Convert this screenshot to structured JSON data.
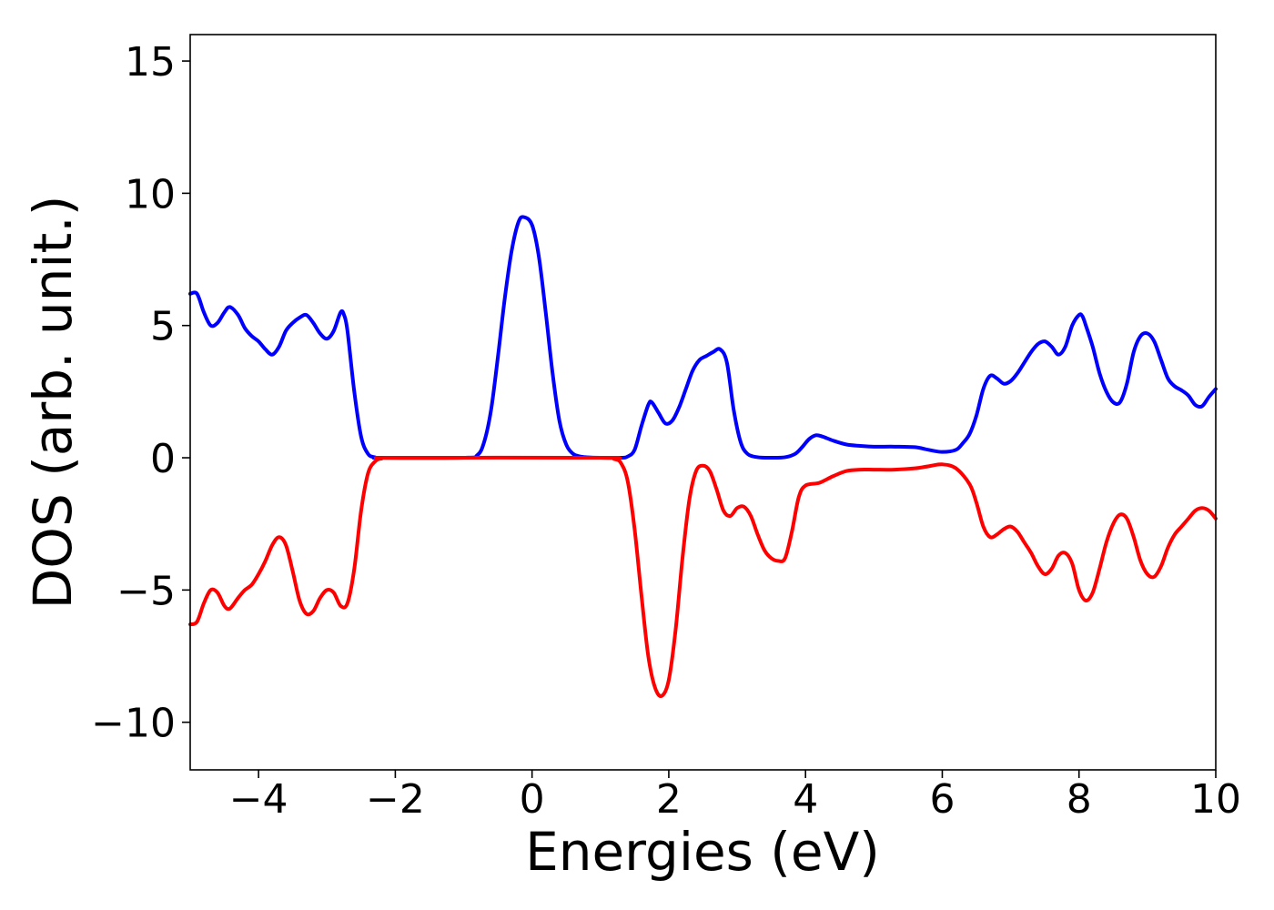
{
  "chart_data": {
    "type": "line",
    "title": "",
    "xlabel": "Energies (eV)",
    "ylabel": "DOS (arb. unit.)",
    "xlim": [
      -5,
      10
    ],
    "ylim": [
      -11.8,
      16
    ],
    "xticks": [
      {
        "value": -4,
        "label": "−4"
      },
      {
        "value": -2,
        "label": "−2"
      },
      {
        "value": 0,
        "label": "0"
      },
      {
        "value": 2,
        "label": "2"
      },
      {
        "value": 4,
        "label": "4"
      },
      {
        "value": 6,
        "label": "6"
      },
      {
        "value": 8,
        "label": "8"
      },
      {
        "value": 10,
        "label": "10"
      }
    ],
    "yticks": [
      {
        "value": -10,
        "label": "−10"
      },
      {
        "value": -5,
        "label": "−5"
      },
      {
        "value": 0,
        "label": "0"
      },
      {
        "value": 5,
        "label": "5"
      },
      {
        "value": 10,
        "label": "10"
      },
      {
        "value": 15,
        "label": "15"
      }
    ],
    "grid": false,
    "legend": "none",
    "series": [
      {
        "color": "#0000ff",
        "points": [
          [
            -5.0,
            6.2
          ],
          [
            -4.9,
            6.2
          ],
          [
            -4.8,
            5.5
          ],
          [
            -4.7,
            5.0
          ],
          [
            -4.6,
            5.1
          ],
          [
            -4.5,
            5.5
          ],
          [
            -4.42,
            5.7
          ],
          [
            -4.3,
            5.4
          ],
          [
            -4.2,
            4.9
          ],
          [
            -4.1,
            4.6
          ],
          [
            -4.0,
            4.4
          ],
          [
            -3.9,
            4.1
          ],
          [
            -3.8,
            3.9
          ],
          [
            -3.7,
            4.2
          ],
          [
            -3.6,
            4.8
          ],
          [
            -3.5,
            5.1
          ],
          [
            -3.4,
            5.3
          ],
          [
            -3.3,
            5.4
          ],
          [
            -3.2,
            5.1
          ],
          [
            -3.1,
            4.7
          ],
          [
            -3.0,
            4.5
          ],
          [
            -2.9,
            4.8
          ],
          [
            -2.8,
            5.5
          ],
          [
            -2.75,
            5.4
          ],
          [
            -2.7,
            4.8
          ],
          [
            -2.6,
            2.5
          ],
          [
            -2.5,
            0.8
          ],
          [
            -2.4,
            0.15
          ],
          [
            -2.3,
            0.02
          ],
          [
            -2.2,
            0.0
          ],
          [
            -1.0,
            0.0
          ],
          [
            -0.8,
            0.1
          ],
          [
            -0.7,
            0.6
          ],
          [
            -0.6,
            1.8
          ],
          [
            -0.5,
            3.8
          ],
          [
            -0.4,
            6.0
          ],
          [
            -0.3,
            7.8
          ],
          [
            -0.2,
            8.9
          ],
          [
            -0.12,
            9.1
          ],
          [
            0.0,
            8.8
          ],
          [
            0.1,
            7.6
          ],
          [
            0.2,
            5.5
          ],
          [
            0.3,
            3.2
          ],
          [
            0.4,
            1.4
          ],
          [
            0.5,
            0.5
          ],
          [
            0.6,
            0.15
          ],
          [
            0.7,
            0.05
          ],
          [
            0.8,
            0.02
          ],
          [
            1.0,
            0.0
          ],
          [
            1.3,
            0.0
          ],
          [
            1.4,
            0.05
          ],
          [
            1.5,
            0.3
          ],
          [
            1.6,
            1.2
          ],
          [
            1.7,
            2.0
          ],
          [
            1.75,
            2.1
          ],
          [
            1.85,
            1.7
          ],
          [
            1.95,
            1.3
          ],
          [
            2.05,
            1.4
          ],
          [
            2.15,
            1.9
          ],
          [
            2.25,
            2.6
          ],
          [
            2.35,
            3.3
          ],
          [
            2.45,
            3.7
          ],
          [
            2.55,
            3.85
          ],
          [
            2.65,
            4.0
          ],
          [
            2.75,
            4.1
          ],
          [
            2.85,
            3.6
          ],
          [
            2.95,
            1.8
          ],
          [
            3.05,
            0.6
          ],
          [
            3.15,
            0.15
          ],
          [
            3.3,
            0.02
          ],
          [
            3.5,
            0.0
          ],
          [
            3.7,
            0.02
          ],
          [
            3.85,
            0.15
          ],
          [
            3.95,
            0.4
          ],
          [
            4.05,
            0.7
          ],
          [
            4.15,
            0.85
          ],
          [
            4.25,
            0.8
          ],
          [
            4.4,
            0.65
          ],
          [
            4.6,
            0.5
          ],
          [
            4.8,
            0.45
          ],
          [
            5.0,
            0.42
          ],
          [
            5.3,
            0.42
          ],
          [
            5.6,
            0.4
          ],
          [
            5.8,
            0.3
          ],
          [
            6.0,
            0.22
          ],
          [
            6.2,
            0.3
          ],
          [
            6.3,
            0.55
          ],
          [
            6.4,
            0.9
          ],
          [
            6.5,
            1.6
          ],
          [
            6.6,
            2.6
          ],
          [
            6.7,
            3.1
          ],
          [
            6.8,
            3.0
          ],
          [
            6.9,
            2.8
          ],
          [
            7.0,
            2.9
          ],
          [
            7.1,
            3.2
          ],
          [
            7.2,
            3.6
          ],
          [
            7.3,
            4.0
          ],
          [
            7.4,
            4.3
          ],
          [
            7.5,
            4.4
          ],
          [
            7.6,
            4.2
          ],
          [
            7.7,
            3.9
          ],
          [
            7.8,
            4.2
          ],
          [
            7.9,
            5.0
          ],
          [
            8.0,
            5.4
          ],
          [
            8.05,
            5.35
          ],
          [
            8.1,
            5.0
          ],
          [
            8.2,
            4.2
          ],
          [
            8.3,
            3.2
          ],
          [
            8.4,
            2.5
          ],
          [
            8.5,
            2.1
          ],
          [
            8.6,
            2.1
          ],
          [
            8.7,
            2.8
          ],
          [
            8.8,
            4.0
          ],
          [
            8.9,
            4.6
          ],
          [
            9.0,
            4.7
          ],
          [
            9.1,
            4.4
          ],
          [
            9.2,
            3.7
          ],
          [
            9.3,
            3.0
          ],
          [
            9.4,
            2.7
          ],
          [
            9.5,
            2.55
          ],
          [
            9.6,
            2.35
          ],
          [
            9.7,
            2.0
          ],
          [
            9.8,
            1.95
          ],
          [
            9.9,
            2.3
          ],
          [
            10.0,
            2.6
          ]
        ]
      },
      {
        "color": "#ff0000",
        "points": [
          [
            -5.0,
            -6.3
          ],
          [
            -4.9,
            -6.2
          ],
          [
            -4.8,
            -5.5
          ],
          [
            -4.7,
            -5.0
          ],
          [
            -4.6,
            -5.1
          ],
          [
            -4.5,
            -5.6
          ],
          [
            -4.42,
            -5.7
          ],
          [
            -4.3,
            -5.3
          ],
          [
            -4.2,
            -5.0
          ],
          [
            -4.1,
            -4.8
          ],
          [
            -4.0,
            -4.4
          ],
          [
            -3.9,
            -3.9
          ],
          [
            -3.8,
            -3.3
          ],
          [
            -3.7,
            -3.0
          ],
          [
            -3.6,
            -3.3
          ],
          [
            -3.5,
            -4.3
          ],
          [
            -3.4,
            -5.4
          ],
          [
            -3.3,
            -5.9
          ],
          [
            -3.2,
            -5.8
          ],
          [
            -3.1,
            -5.3
          ],
          [
            -3.0,
            -5.0
          ],
          [
            -2.9,
            -5.1
          ],
          [
            -2.8,
            -5.6
          ],
          [
            -2.7,
            -5.5
          ],
          [
            -2.6,
            -4.2
          ],
          [
            -2.5,
            -2.0
          ],
          [
            -2.4,
            -0.6
          ],
          [
            -2.3,
            -0.15
          ],
          [
            -2.2,
            -0.03
          ],
          [
            -2.0,
            0.0
          ],
          [
            1.0,
            0.0
          ],
          [
            1.2,
            -0.05
          ],
          [
            1.3,
            -0.2
          ],
          [
            1.4,
            -0.9
          ],
          [
            1.5,
            -2.7
          ],
          [
            1.6,
            -5.2
          ],
          [
            1.7,
            -7.5
          ],
          [
            1.8,
            -8.7
          ],
          [
            1.9,
            -9.0
          ],
          [
            2.0,
            -8.4
          ],
          [
            2.1,
            -6.5
          ],
          [
            2.2,
            -3.8
          ],
          [
            2.3,
            -1.6
          ],
          [
            2.4,
            -0.5
          ],
          [
            2.5,
            -0.3
          ],
          [
            2.6,
            -0.5
          ],
          [
            2.7,
            -1.2
          ],
          [
            2.8,
            -2.0
          ],
          [
            2.9,
            -2.2
          ],
          [
            3.0,
            -1.9
          ],
          [
            3.1,
            -1.85
          ],
          [
            3.2,
            -2.2
          ],
          [
            3.3,
            -2.9
          ],
          [
            3.4,
            -3.5
          ],
          [
            3.5,
            -3.8
          ],
          [
            3.6,
            -3.9
          ],
          [
            3.7,
            -3.8
          ],
          [
            3.8,
            -2.8
          ],
          [
            3.9,
            -1.5
          ],
          [
            4.0,
            -1.05
          ],
          [
            4.2,
            -0.95
          ],
          [
            4.4,
            -0.7
          ],
          [
            4.6,
            -0.5
          ],
          [
            4.8,
            -0.45
          ],
          [
            5.0,
            -0.45
          ],
          [
            5.3,
            -0.45
          ],
          [
            5.6,
            -0.4
          ],
          [
            5.8,
            -0.32
          ],
          [
            6.0,
            -0.25
          ],
          [
            6.2,
            -0.4
          ],
          [
            6.4,
            -1.0
          ],
          [
            6.5,
            -1.7
          ],
          [
            6.6,
            -2.6
          ],
          [
            6.7,
            -3.0
          ],
          [
            6.8,
            -2.9
          ],
          [
            6.9,
            -2.7
          ],
          [
            7.0,
            -2.6
          ],
          [
            7.1,
            -2.8
          ],
          [
            7.2,
            -3.2
          ],
          [
            7.3,
            -3.6
          ],
          [
            7.4,
            -4.1
          ],
          [
            7.5,
            -4.4
          ],
          [
            7.6,
            -4.2
          ],
          [
            7.7,
            -3.7
          ],
          [
            7.8,
            -3.6
          ],
          [
            7.9,
            -4.0
          ],
          [
            8.0,
            -5.0
          ],
          [
            8.1,
            -5.4
          ],
          [
            8.2,
            -5.1
          ],
          [
            8.3,
            -4.2
          ],
          [
            8.4,
            -3.2
          ],
          [
            8.5,
            -2.5
          ],
          [
            8.6,
            -2.15
          ],
          [
            8.7,
            -2.3
          ],
          [
            8.8,
            -3.0
          ],
          [
            8.9,
            -3.9
          ],
          [
            9.0,
            -4.4
          ],
          [
            9.1,
            -4.5
          ],
          [
            9.2,
            -4.1
          ],
          [
            9.3,
            -3.4
          ],
          [
            9.4,
            -2.9
          ],
          [
            9.5,
            -2.6
          ],
          [
            9.6,
            -2.3
          ],
          [
            9.7,
            -2.0
          ],
          [
            9.8,
            -1.9
          ],
          [
            9.9,
            -2.0
          ],
          [
            10.0,
            -2.3
          ]
        ]
      }
    ]
  }
}
